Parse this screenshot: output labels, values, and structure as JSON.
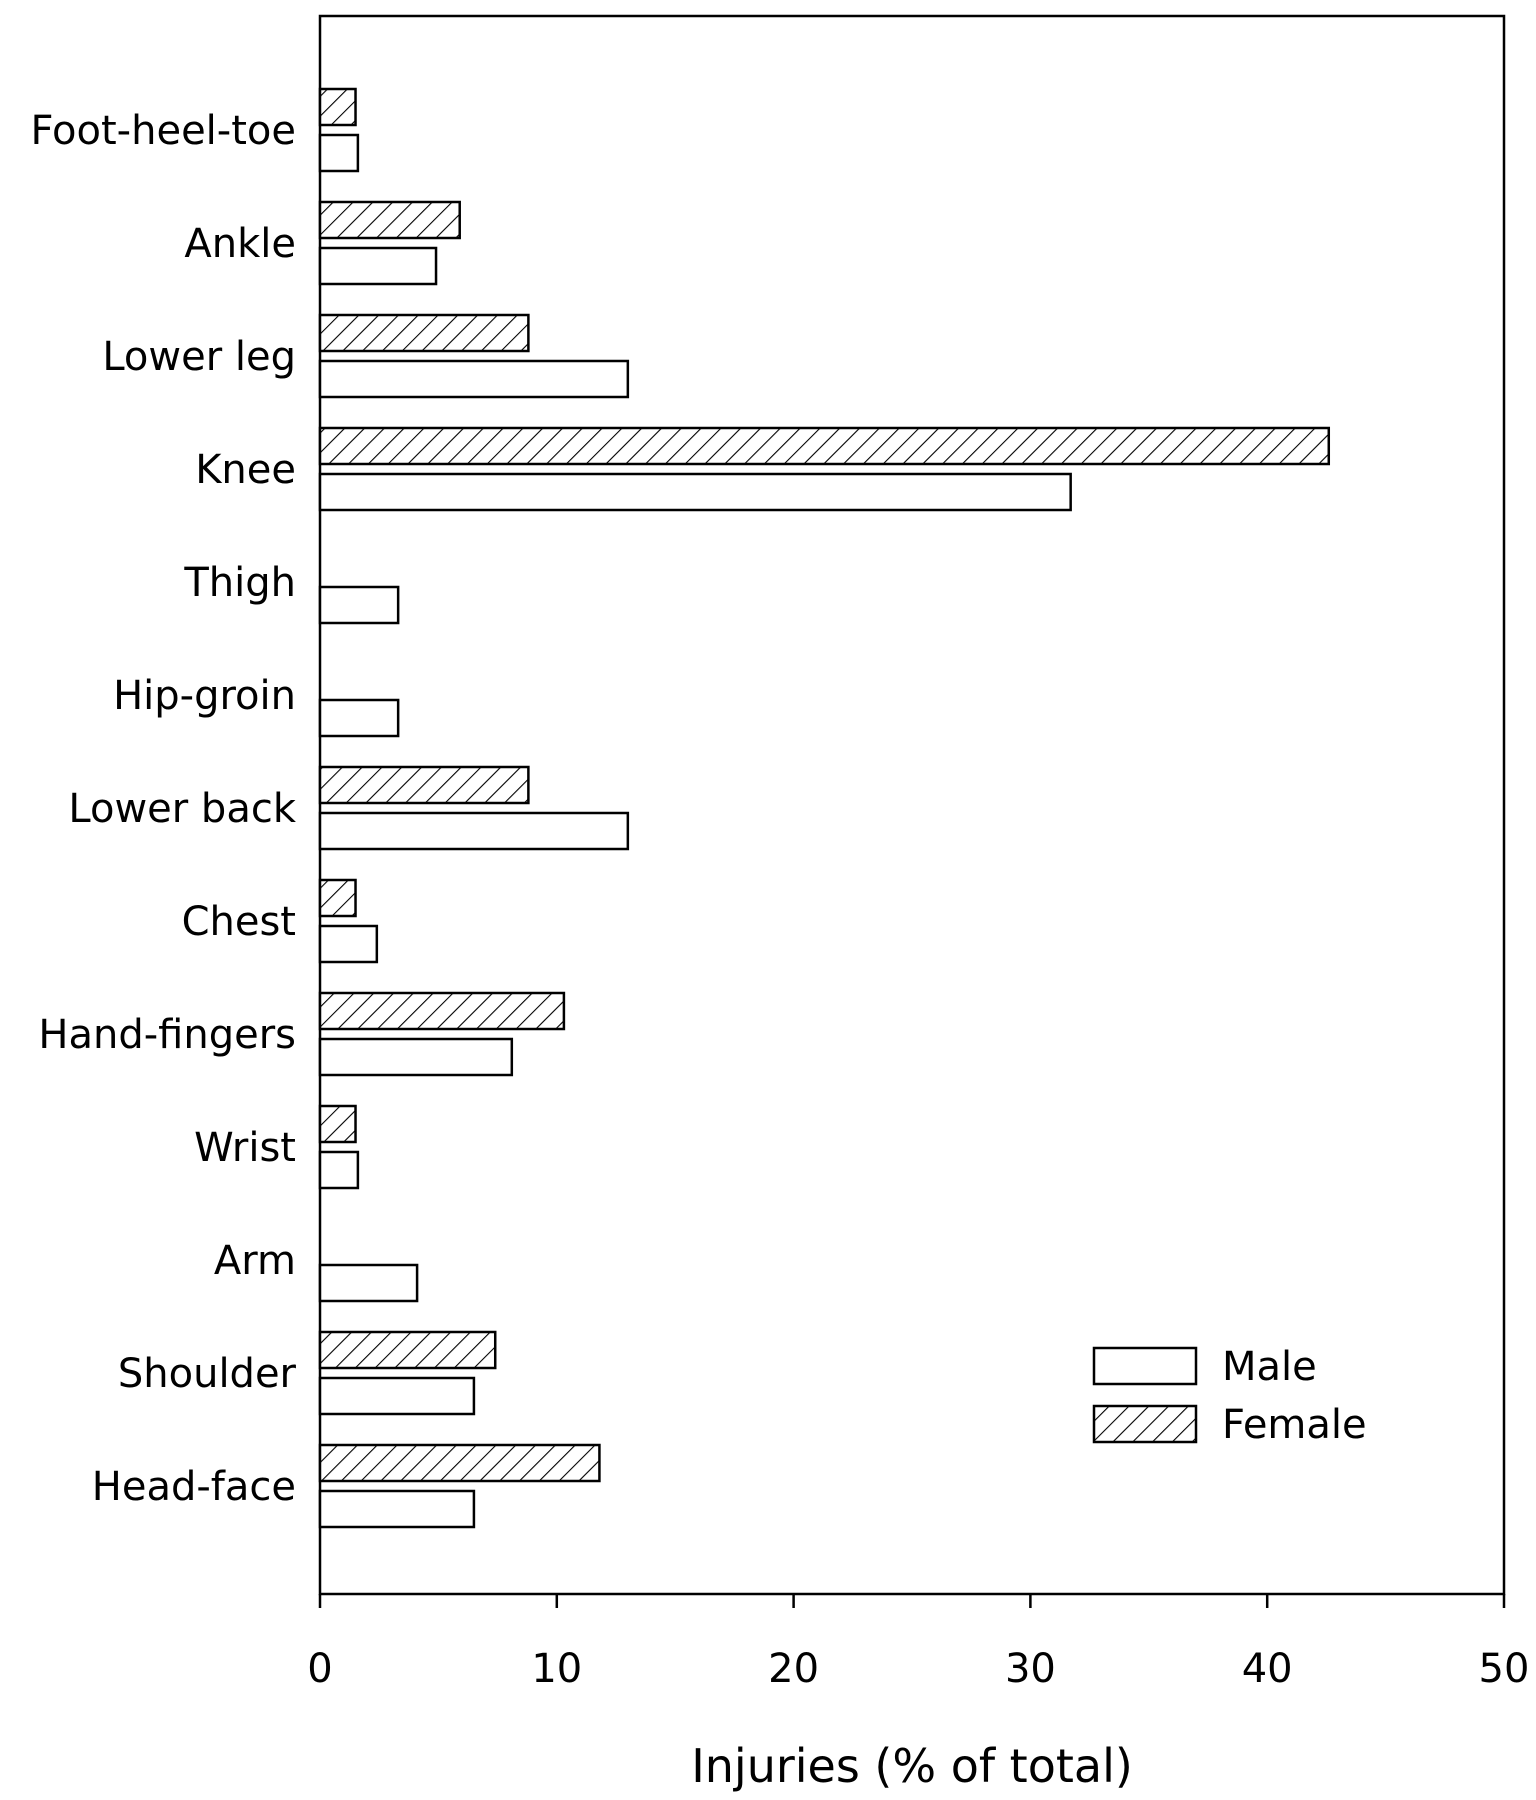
{
  "chart_data": {
    "type": "bar",
    "orientation": "horizontal",
    "xlabel": "Injuries (% of total)",
    "ylabel": "",
    "title": "",
    "xlim": [
      0,
      50
    ],
    "xticks": [
      "0",
      "10",
      "20",
      "30",
      "40",
      "50"
    ],
    "grid": false,
    "legend_placement": "bottom-right",
    "categories": [
      "Foot-heel-toe",
      "Ankle",
      "Lower leg",
      "Knee",
      "Thigh",
      "Hip-groin",
      "Lower back",
      "Chest",
      "Hand-fingers",
      "Wrist",
      "Arm",
      "Shoulder",
      "Head-face"
    ],
    "series": [
      {
        "name": "Male",
        "fill": "plain",
        "values": [
          1.6,
          4.9,
          13.0,
          31.7,
          3.3,
          3.3,
          13.0,
          2.4,
          8.1,
          1.6,
          4.1,
          6.5,
          6.5
        ]
      },
      {
        "name": "Female",
        "fill": "hatched",
        "values": [
          1.5,
          5.9,
          8.8,
          42.6,
          0,
          0,
          8.8,
          1.5,
          10.3,
          1.5,
          0,
          7.4,
          11.8
        ]
      }
    ],
    "colors": {
      "outline": "#000000",
      "fill": "#ffffff",
      "hatch": "#000000"
    }
  }
}
